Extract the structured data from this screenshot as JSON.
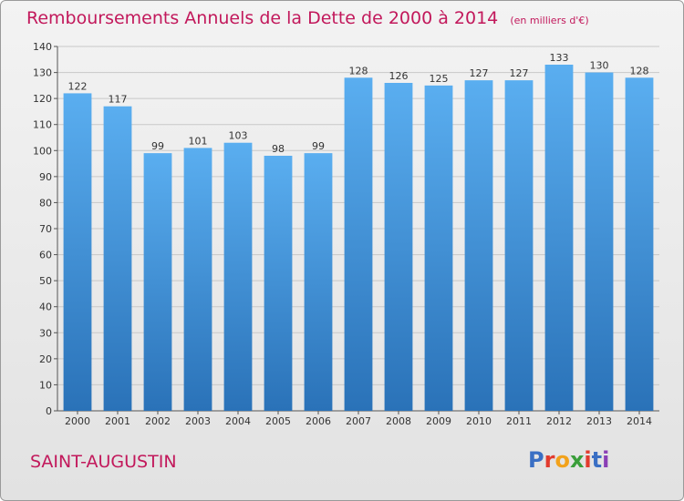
{
  "title": "Remboursements Annuels de la Dette de 2000 à 2014",
  "unit": "(en milliers d'€)",
  "place": "SAINT-AUGUSTIN",
  "logo": {
    "text": "ProXiti",
    "letters": [
      "P",
      "r",
      "o",
      "x",
      "i",
      "t",
      "i"
    ],
    "colors": [
      "#3a6fc4",
      "#e23b2e",
      "#f2a21b",
      "#3a9e3a",
      "#e23b2e",
      "#3a6fc4",
      "#8a3fb5"
    ]
  },
  "colors": {
    "bar_top": "#5aaef0",
    "bar_bottom": "#2a72b8",
    "title": "#c2185b"
  },
  "chart_data": {
    "type": "bar",
    "categories": [
      "2000",
      "2001",
      "2002",
      "2003",
      "2004",
      "2005",
      "2006",
      "2007",
      "2008",
      "2009",
      "2010",
      "2011",
      "2012",
      "2013",
      "2014"
    ],
    "values": [
      122,
      117,
      99,
      101,
      103,
      98,
      99,
      128,
      126,
      125,
      127,
      127,
      133,
      130,
      128
    ],
    "title": "Remboursements Annuels de la Dette de 2000 à 2014",
    "xlabel": "",
    "ylabel": "",
    "ylim": [
      0,
      140
    ],
    "yticks": [
      0,
      10,
      20,
      30,
      40,
      50,
      60,
      70,
      80,
      90,
      100,
      110,
      120,
      130,
      140
    ],
    "grid": true,
    "data_labels": true
  }
}
